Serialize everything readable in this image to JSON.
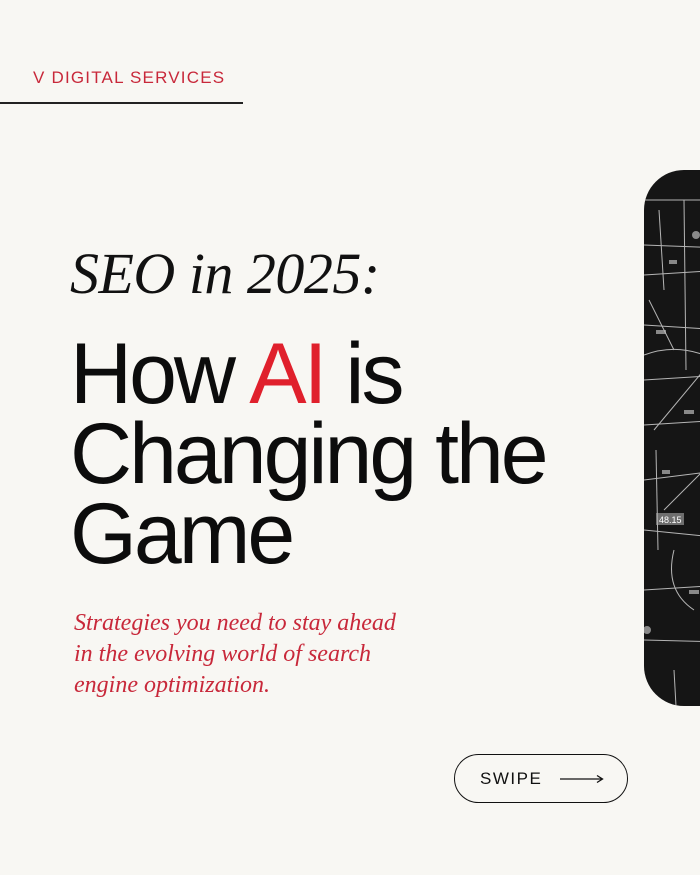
{
  "brand": {
    "name": "V DIGITAL SERVICES",
    "color": "#c8283a"
  },
  "headline": {
    "kicker": "SEO in 2025:",
    "line1_pre": "How ",
    "line1_accent": "AI",
    "line1_post": " is",
    "line2": "Changing the",
    "line3": "Game",
    "accent_color": "#e0202c"
  },
  "subtitle": {
    "line1": "Strategies you need to stay ahead",
    "line2": "in the evolving world of search",
    "line3": "engine optimization."
  },
  "image": {
    "label": "48.15",
    "icon": "data-network-image"
  },
  "swipe": {
    "label": "SWIPE",
    "icon": "arrow-right-icon"
  }
}
